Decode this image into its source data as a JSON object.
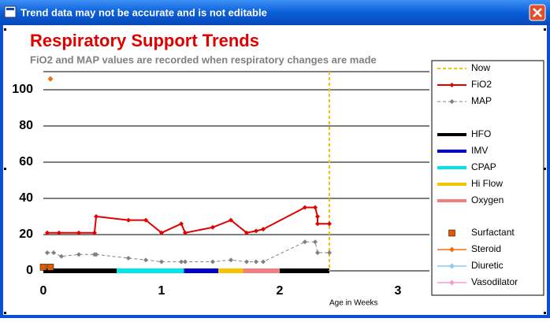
{
  "window": {
    "title": "Trend data may not be accurate and is not editable"
  },
  "chart_data": {
    "type": "line",
    "title": "Respiratory Support Trends",
    "subtitle": "FiO2 and MAP values are recorded when respiratory changes are made",
    "x_label": "Age in Weeks",
    "xlim": [
      0,
      3
    ],
    "xticks": [
      0,
      1,
      2,
      3
    ],
    "ylim": [
      0,
      110
    ],
    "yticks": [
      0,
      20,
      40,
      60,
      80,
      100
    ],
    "grid": true,
    "now": {
      "name": "Now",
      "x": 2.42,
      "color": "#f5c400"
    },
    "series": [
      {
        "name": "FiO2",
        "color": "#e00000",
        "dashed": false,
        "x": [
          0.033,
          0.133,
          0.3,
          0.433,
          0.447,
          0.72,
          0.867,
          1.0,
          1.167,
          1.2,
          1.433,
          1.587,
          1.72,
          1.8,
          1.86,
          2.213,
          2.3,
          2.32,
          2.32,
          2.42
        ],
        "values": [
          21,
          21,
          21,
          21,
          30,
          28,
          28,
          21,
          26,
          21,
          24,
          28,
          21,
          22,
          23,
          35,
          35,
          30,
          26,
          26
        ]
      },
      {
        "name": "MAP",
        "color": "#808080",
        "dashed": true,
        "x": [
          0.033,
          0.087,
          0.153,
          0.3,
          0.433,
          0.447,
          0.72,
          0.867,
          1.0,
          1.167,
          1.2,
          1.433,
          1.587,
          1.72,
          1.8,
          1.86,
          2.213,
          2.3,
          2.32,
          2.42
        ],
        "values": [
          10,
          10,
          8,
          9,
          9,
          9,
          7,
          6,
          5,
          5,
          5,
          5,
          6,
          5,
          5,
          5,
          16,
          16,
          10,
          10
        ]
      }
    ],
    "support": [
      {
        "name": "HFO",
        "color": "#000000",
        "periods": [
          {
            "start": 0,
            "end": 0.62
          },
          {
            "start": 2.0,
            "end": 2.42
          }
        ]
      },
      {
        "name": "IMV",
        "color": "#0000cc",
        "periods": [
          {
            "start": 1.19,
            "end": 1.48
          }
        ]
      },
      {
        "name": "CPAP",
        "color": "#00e5e5",
        "periods": [
          {
            "start": 0.62,
            "end": 1.19
          }
        ]
      },
      {
        "name": "Hi Flow",
        "color": "#f5c400",
        "periods": [
          {
            "start": 1.48,
            "end": 1.69
          }
        ]
      },
      {
        "name": "Oxygen",
        "color": "#f08080",
        "periods": [
          {
            "start": 1.69,
            "end": 2.0
          }
        ]
      }
    ],
    "events": [
      {
        "name": "Surfactant",
        "color": "#e05a00",
        "marker": "square",
        "x": [
          0,
          0.06
        ],
        "values": [
          2,
          2
        ]
      },
      {
        "name": "Steroid",
        "color": "#f07010",
        "marker": "diamond",
        "x": [
          0.06
        ],
        "values": [
          106
        ]
      },
      {
        "name": "Diuretic",
        "color": "#8ec8f0",
        "marker": "diamond",
        "x": [],
        "values": []
      },
      {
        "name": "Vasodilator",
        "color": "#f0a0d0",
        "marker": "diamond",
        "x": [],
        "values": []
      }
    ]
  }
}
